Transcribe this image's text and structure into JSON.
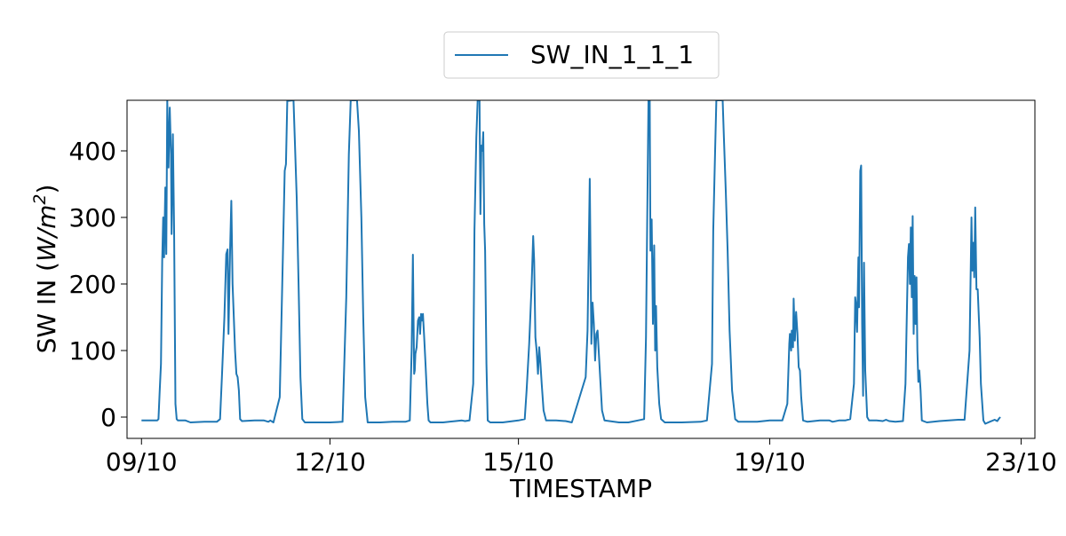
{
  "chart_data": {
    "type": "line",
    "xlabel": "TIMESTAMP",
    "ylabel_main": "SW IN (",
    "ylabel_unit_w": "W/m",
    "ylabel_unit_exp": "2",
    "ylabel_close": ")",
    "x_range_days": [
      8.77,
      23.22
    ],
    "xlim_dates": [
      "2023-10-08",
      "2023-10-23"
    ],
    "ylim": [
      -32,
      476
    ],
    "x_ticks": [
      {
        "day": 9,
        "label": "09/10"
      },
      {
        "day": 12,
        "label": "12/10"
      },
      {
        "day": 15,
        "label": "15/10"
      },
      {
        "day": 19,
        "label": "19/10"
      },
      {
        "day": 23,
        "label": "23/10"
      }
    ],
    "y_ticks": [
      0,
      100,
      200,
      300,
      400
    ],
    "legend": {
      "position": "top-center",
      "label": "SW_IN_1_1_1"
    },
    "series": [
      {
        "name": "SW_IN_1_1_1",
        "color": "#1f77b4",
        "points": [
          [
            9.0,
            -5
          ],
          [
            9.25,
            -5
          ],
          [
            9.27,
            -3
          ],
          [
            9.29,
            40
          ],
          [
            9.31,
            80
          ],
          [
            9.33,
            235
          ],
          [
            9.345,
            300
          ],
          [
            9.36,
            240
          ],
          [
            9.38,
            345
          ],
          [
            9.395,
            245
          ],
          [
            9.41,
            476
          ],
          [
            9.43,
            375
          ],
          [
            9.45,
            465
          ],
          [
            9.47,
            395
          ],
          [
            9.48,
            275
          ],
          [
            9.5,
            425
          ],
          [
            9.52,
            280
          ],
          [
            9.54,
            20
          ],
          [
            9.56,
            -3
          ],
          [
            9.58,
            -5
          ],
          [
            9.7,
            -5
          ],
          [
            9.78,
            -8
          ],
          [
            10.0,
            -7
          ],
          [
            10.2,
            -7
          ],
          [
            10.25,
            -3
          ],
          [
            10.28,
            60
          ],
          [
            10.32,
            150
          ],
          [
            10.35,
            245
          ],
          [
            10.37,
            252
          ],
          [
            10.385,
            125
          ],
          [
            10.41,
            250
          ],
          [
            10.43,
            325
          ],
          [
            10.45,
            200
          ],
          [
            10.47,
            150
          ],
          [
            10.49,
            100
          ],
          [
            10.51,
            65
          ],
          [
            10.53,
            60
          ],
          [
            10.55,
            40
          ],
          [
            10.57,
            -3
          ],
          [
            10.6,
            -6
          ],
          [
            10.8,
            -5
          ],
          [
            10.95,
            -5
          ],
          [
            11.02,
            -7
          ],
          [
            11.05,
            -5
          ],
          [
            11.1,
            -8
          ],
          [
            11.2,
            30
          ],
          [
            11.25,
            240
          ],
          [
            11.28,
            370
          ],
          [
            11.3,
            380
          ],
          [
            11.32,
            475
          ],
          [
            11.42,
            476
          ],
          [
            11.44,
            420
          ],
          [
            11.47,
            330
          ],
          [
            11.5,
            200
          ],
          [
            11.53,
            60
          ],
          [
            11.56,
            -3
          ],
          [
            11.6,
            -8
          ],
          [
            11.8,
            -8
          ],
          [
            12.0,
            -8
          ],
          [
            12.2,
            -7
          ],
          [
            12.26,
            180
          ],
          [
            12.3,
            395
          ],
          [
            12.33,
            476
          ],
          [
            12.43,
            476
          ],
          [
            12.46,
            430
          ],
          [
            12.5,
            300
          ],
          [
            12.53,
            150
          ],
          [
            12.56,
            30
          ],
          [
            12.6,
            -8
          ],
          [
            12.8,
            -8
          ],
          [
            13.0,
            -7
          ],
          [
            13.2,
            -7
          ],
          [
            13.27,
            -5
          ],
          [
            13.3,
            100
          ],
          [
            13.32,
            244
          ],
          [
            13.34,
            65
          ],
          [
            13.35,
            70
          ],
          [
            13.36,
            95
          ],
          [
            13.38,
            105
          ],
          [
            13.4,
            145
          ],
          [
            13.42,
            150
          ],
          [
            13.435,
            125
          ],
          [
            13.45,
            155
          ],
          [
            13.465,
            145
          ],
          [
            13.48,
            155
          ],
          [
            13.5,
            120
          ],
          [
            13.52,
            80
          ],
          [
            13.55,
            20
          ],
          [
            13.57,
            -5
          ],
          [
            13.6,
            -8
          ],
          [
            13.8,
            -8
          ],
          [
            14.0,
            -6
          ],
          [
            14.1,
            -5
          ],
          [
            14.15,
            -6
          ],
          [
            14.22,
            -5
          ],
          [
            14.28,
            50
          ],
          [
            14.3,
            280
          ],
          [
            14.33,
            420
          ],
          [
            14.35,
            476
          ],
          [
            14.38,
            476
          ],
          [
            14.395,
            305
          ],
          [
            14.41,
            408
          ],
          [
            14.425,
            400
          ],
          [
            14.44,
            428
          ],
          [
            14.455,
            290
          ],
          [
            14.47,
            250
          ],
          [
            14.49,
            80
          ],
          [
            14.51,
            -5
          ],
          [
            14.55,
            -8
          ],
          [
            14.75,
            -8
          ],
          [
            15.0,
            -5
          ],
          [
            15.1,
            -3
          ],
          [
            15.13,
            40
          ],
          [
            15.17,
            110
          ],
          [
            15.21,
            200
          ],
          [
            15.235,
            272
          ],
          [
            15.25,
            235
          ],
          [
            15.27,
            120
          ],
          [
            15.29,
            100
          ],
          [
            15.31,
            65
          ],
          [
            15.33,
            105
          ],
          [
            15.35,
            80
          ],
          [
            15.37,
            50
          ],
          [
            15.4,
            10
          ],
          [
            15.44,
            -5
          ],
          [
            15.6,
            -5
          ],
          [
            15.75,
            -6
          ],
          [
            15.85,
            -8
          ],
          [
            16.07,
            60
          ],
          [
            16.1,
            130
          ],
          [
            16.135,
            358
          ],
          [
            16.16,
            110
          ],
          [
            16.18,
            172
          ],
          [
            16.2,
            140
          ],
          [
            16.22,
            85
          ],
          [
            16.24,
            125
          ],
          [
            16.26,
            130
          ],
          [
            16.3,
            60
          ],
          [
            16.33,
            10
          ],
          [
            16.37,
            -5
          ],
          [
            16.6,
            -8
          ],
          [
            16.75,
            -8
          ],
          [
            16.9,
            -5
          ],
          [
            17.0,
            -3
          ],
          [
            17.03,
            120
          ],
          [
            17.05,
            300
          ],
          [
            17.07,
            476
          ],
          [
            17.09,
            476
          ],
          [
            17.1,
            250
          ],
          [
            17.12,
            297
          ],
          [
            17.14,
            140
          ],
          [
            17.16,
            258
          ],
          [
            17.175,
            100
          ],
          [
            17.19,
            167
          ],
          [
            17.21,
            75
          ],
          [
            17.24,
            20
          ],
          [
            17.27,
            -3
          ],
          [
            17.33,
            -8
          ],
          [
            17.6,
            -8
          ],
          [
            17.9,
            -7
          ],
          [
            18.0,
            -5
          ],
          [
            18.08,
            80
          ],
          [
            18.1,
            280
          ],
          [
            18.13,
            400
          ],
          [
            18.15,
            476
          ],
          [
            18.25,
            476
          ],
          [
            18.27,
            420
          ],
          [
            18.3,
            340
          ],
          [
            18.33,
            250
          ],
          [
            18.36,
            130
          ],
          [
            18.4,
            40
          ],
          [
            18.45,
            -3
          ],
          [
            18.5,
            -7
          ],
          [
            18.8,
            -7
          ],
          [
            19.0,
            -5
          ],
          [
            19.2,
            -5
          ],
          [
            19.28,
            20
          ],
          [
            19.31,
            110
          ],
          [
            19.32,
            125
          ],
          [
            19.34,
            100
          ],
          [
            19.35,
            130
          ],
          [
            19.37,
            105
          ],
          [
            19.38,
            178
          ],
          [
            19.4,
            115
          ],
          [
            19.42,
            158
          ],
          [
            19.44,
            125
          ],
          [
            19.46,
            75
          ],
          [
            19.48,
            70
          ],
          [
            19.5,
            30
          ],
          [
            19.53,
            -5
          ],
          [
            19.6,
            -7
          ],
          [
            19.8,
            -5
          ],
          [
            19.95,
            -5
          ],
          [
            20.0,
            -7
          ],
          [
            20.1,
            -5
          ],
          [
            20.2,
            -5
          ],
          [
            20.28,
            -3
          ],
          [
            20.34,
            50
          ],
          [
            20.36,
            180
          ],
          [
            20.37,
            172
          ],
          [
            20.39,
            128
          ],
          [
            20.41,
            240
          ],
          [
            20.42,
            165
          ],
          [
            20.44,
            370
          ],
          [
            20.455,
            378
          ],
          [
            20.47,
            140
          ],
          [
            20.485,
            32
          ],
          [
            20.5,
            232
          ],
          [
            20.52,
            70
          ],
          [
            20.55,
            0
          ],
          [
            20.58,
            -5
          ],
          [
            20.7,
            -5
          ],
          [
            20.8,
            -6
          ],
          [
            20.85,
            -4
          ],
          [
            20.9,
            -6
          ],
          [
            21.0,
            -7
          ],
          [
            21.12,
            -6
          ],
          [
            21.16,
            50
          ],
          [
            21.2,
            240
          ],
          [
            21.215,
            260
          ],
          [
            21.23,
            200
          ],
          [
            21.245,
            285
          ],
          [
            21.26,
            180
          ],
          [
            21.275,
            302
          ],
          [
            21.29,
            125
          ],
          [
            21.305,
            212
          ],
          [
            21.32,
            140
          ],
          [
            21.335,
            210
          ],
          [
            21.35,
            100
          ],
          [
            21.365,
            53
          ],
          [
            21.38,
            70
          ],
          [
            21.4,
            40
          ],
          [
            21.42,
            -5
          ],
          [
            21.5,
            -8
          ],
          [
            21.7,
            -6
          ],
          [
            21.85,
            -5
          ],
          [
            22.0,
            -4
          ],
          [
            22.1,
            -4
          ],
          [
            22.18,
            100
          ],
          [
            22.21,
            300
          ],
          [
            22.225,
            220
          ],
          [
            22.24,
            262
          ],
          [
            22.255,
            210
          ],
          [
            22.27,
            315
          ],
          [
            22.29,
            192
          ],
          [
            22.31,
            192
          ],
          [
            22.34,
            120
          ],
          [
            22.36,
            50
          ],
          [
            22.4,
            -5
          ],
          [
            22.43,
            -10
          ],
          [
            22.5,
            -7
          ],
          [
            22.58,
            -4
          ],
          [
            22.62,
            -6
          ],
          [
            22.65,
            -2
          ],
          [
            22.67,
            0
          ]
        ]
      }
    ]
  }
}
